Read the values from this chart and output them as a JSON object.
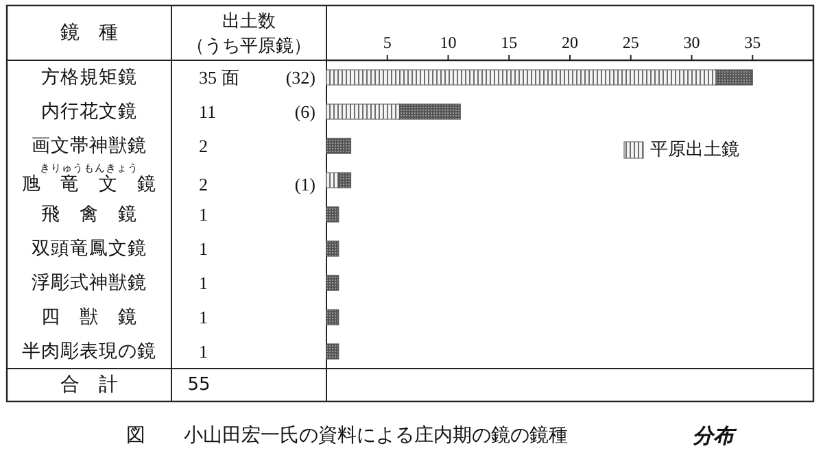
{
  "chart_data": {
    "type": "bar",
    "orientation": "horizontal",
    "stacked": true,
    "title": "図　　小山田宏一氏の資料による庄内期の鏡の鏡種",
    "ylabel": "鏡　種",
    "categories": [
      "方格規矩鏡",
      "内行花文鏡",
      "画文帯神獣鏡",
      "虺　竜　文　鏡",
      "飛　禽　鏡",
      "双頭竜鳳文鏡",
      "浮彫式神獣鏡",
      "四　獣　鏡",
      "半肉彫表現の鏡"
    ],
    "series": [
      {
        "name": "平原出土鏡",
        "color": "#6e6e6e",
        "values": [
          32,
          6,
          0,
          1,
          0,
          0,
          0,
          0,
          0
        ],
        "value_labels": [
          "(32)",
          "(6)",
          null,
          "(1)",
          null,
          null,
          null,
          null,
          null
        ]
      },
      {
        "color": "#555555",
        "values": [
          3,
          5,
          2,
          1,
          1,
          1,
          1,
          1,
          1
        ]
      }
    ],
    "x2lim": [
      0,
      40
    ],
    "x2ticks": [
      5,
      10,
      15,
      20,
      25,
      30,
      35
    ],
    "legend": "top right",
    "annotations": [
      "出土数",
      "（うち平原鏡）",
      "合　計",
      "55",
      "きりゅうもんきょう",
      "分布",
      "35 面",
      "11",
      "2",
      "2",
      "1",
      "1",
      "1",
      "1",
      "1"
    ]
  }
}
